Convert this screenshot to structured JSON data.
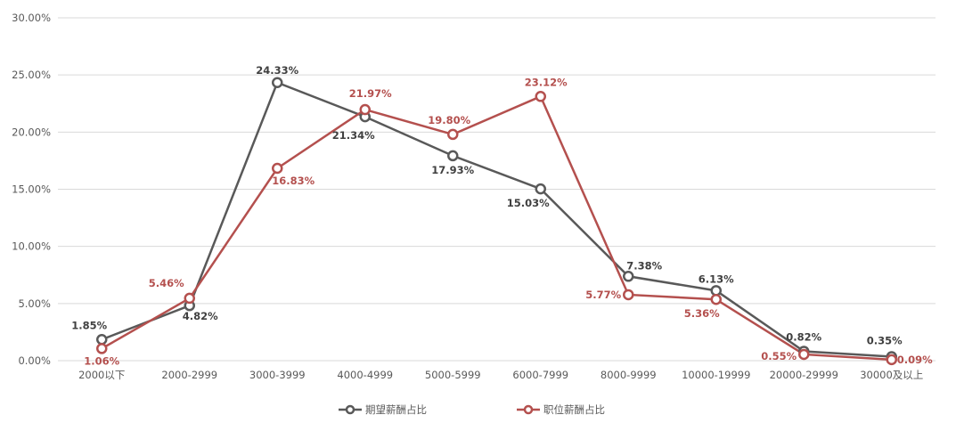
{
  "chart_data": {
    "type": "line",
    "title": "",
    "xlabel": "",
    "ylabel": "",
    "categories": [
      "2000以下",
      "2000-2999",
      "3000-3999",
      "4000-4999",
      "5000-5999",
      "6000-7999",
      "8000-9999",
      "10000-19999",
      "20000-29999",
      "30000及以上"
    ],
    "ylim": [
      0,
      30
    ],
    "yticks": [
      "0.00%",
      "5.00%",
      "10.00%",
      "15.00%",
      "20.00%",
      "25.00%",
      "30.00%"
    ],
    "grid": true,
    "legend_position": "bottom",
    "series": [
      {
        "name": "期望薪酬占比",
        "color": "#595959",
        "values": [
          1.85,
          4.82,
          24.33,
          21.34,
          17.93,
          15.03,
          7.38,
          6.13,
          0.82,
          0.35
        ],
        "labels": [
          "1.85%",
          "4.82%",
          "24.33%",
          "21.34%",
          "17.93%",
          "15.03%",
          "7.38%",
          "6.13%",
          "0.82%",
          "0.35%"
        ]
      },
      {
        "name": "职位薪酬占比",
        "color": "#B4504E",
        "values": [
          1.06,
          5.46,
          16.83,
          21.97,
          19.8,
          23.12,
          5.77,
          5.36,
          0.55,
          0.09
        ],
        "labels": [
          "1.06%",
          "5.46%",
          "16.83%",
          "21.97%",
          "19.80%",
          "23.12%",
          "5.77%",
          "5.36%",
          "0.55%",
          "0.09%"
        ]
      }
    ]
  }
}
